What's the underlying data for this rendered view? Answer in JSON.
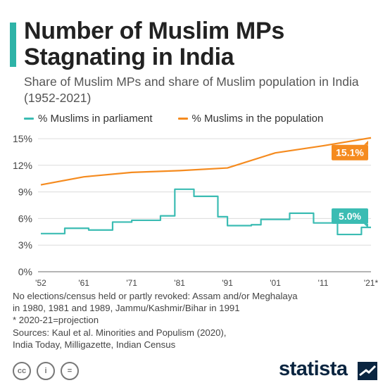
{
  "header": {
    "title": "Number of Muslim MPs Stagnating in India",
    "subtitle": "Share of Muslim MPs and share of Muslim population in India (1952-2021)"
  },
  "colors": {
    "accent": "#2eb3a7",
    "parliament": "#3bbcb3",
    "population": "#f58b1f",
    "brand": "#0a2540"
  },
  "chart_data": {
    "type": "line",
    "x_ticks": [
      "'52",
      "'61",
      "'71",
      "'81",
      "'91",
      "'01",
      "'11",
      "'21*"
    ],
    "y_ticks": [
      "0%",
      "3%",
      "6%",
      "9%",
      "12%",
      "15%"
    ],
    "ylim": [
      0,
      15
    ],
    "xlim": [
      1952,
      2021
    ],
    "grid": true,
    "legend_position": "top-left",
    "series": [
      {
        "name": "% Muslims in parliament",
        "color": "#3bbcb3",
        "step": true,
        "end_label": "5.0%",
        "points": [
          [
            1952,
            4.3
          ],
          [
            1957,
            4.9
          ],
          [
            1962,
            4.7
          ],
          [
            1967,
            5.6
          ],
          [
            1971,
            5.8
          ],
          [
            1977,
            6.3
          ],
          [
            1980,
            9.3
          ],
          [
            1984,
            8.5
          ],
          [
            1989,
            6.2
          ],
          [
            1991,
            5.2
          ],
          [
            1996,
            5.3
          ],
          [
            1998,
            5.9
          ],
          [
            2004,
            6.6
          ],
          [
            2009,
            5.5
          ],
          [
            2014,
            4.2
          ],
          [
            2019,
            5.0
          ],
          [
            2021,
            5.0
          ]
        ]
      },
      {
        "name": "% Muslims in the population",
        "color": "#f58b1f",
        "step": false,
        "end_label": "15.1%",
        "points": [
          [
            1952,
            9.8
          ],
          [
            1961,
            10.7
          ],
          [
            1971,
            11.2
          ],
          [
            1981,
            11.4
          ],
          [
            1991,
            11.7
          ],
          [
            2001,
            13.4
          ],
          [
            2011,
            14.2
          ],
          [
            2021,
            15.1
          ]
        ]
      }
    ]
  },
  "notes": [
    "No elections/census held or partly revoked: Assam and/or Meghalaya",
    "in 1980, 1981 and 1989, Jammu/Kashmir/Bihar in 1991",
    "* 2020-21=projection",
    "Sources: Kaul et al. Minorities and Populism (2020),",
    "India Today, Milligazette, Indian Census"
  ],
  "footer": {
    "license_icons": [
      "cc-icon",
      "person-icon",
      "equals-icon"
    ],
    "license_glyphs": [
      "cc",
      "i",
      "="
    ],
    "brand": "statista"
  }
}
